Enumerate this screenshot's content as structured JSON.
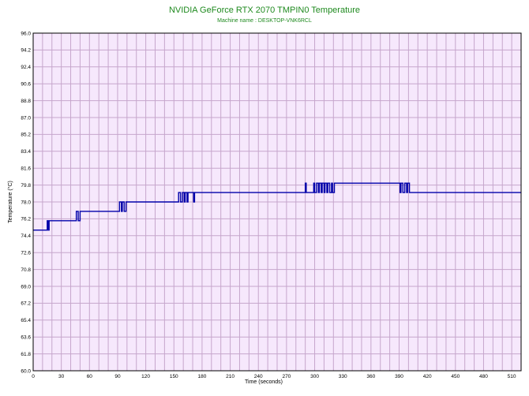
{
  "chart_data": {
    "type": "line",
    "title": "NVIDIA GeForce RTX 2070 TMPIN0 Temperature",
    "subtitle": "Machine name : DESKTOP-VNK6RCL",
    "xlabel": "Time (seconds)",
    "ylabel": "Temperature (°C)",
    "xlim": [
      0,
      520
    ],
    "ylim": [
      60.0,
      96.0
    ],
    "x_ticks": [
      0,
      30,
      60,
      90,
      120,
      150,
      180,
      210,
      240,
      270,
      300,
      330,
      360,
      390,
      420,
      450,
      480,
      510
    ],
    "y_ticks": [
      60.0,
      61.8,
      63.6,
      65.4,
      67.2,
      69.0,
      70.8,
      72.6,
      74.4,
      76.2,
      78.0,
      79.8,
      81.6,
      83.4,
      85.2,
      87.0,
      88.8,
      90.6,
      92.4,
      94.2,
      96.0
    ],
    "grid": true,
    "plot_background": "#f6e8fc",
    "grid_color": "#c6a6cc",
    "line_color": "#0000aa",
    "title_color": "#1f8a1f",
    "series": [
      {
        "values": [
          [
            0,
            75.0
          ],
          [
            15,
            75.0
          ],
          [
            15,
            76.0
          ],
          [
            16,
            76.0
          ],
          [
            16,
            75.0
          ],
          [
            17,
            75.0
          ],
          [
            17,
            76.0
          ],
          [
            46,
            76.0
          ],
          [
            46,
            77.0
          ],
          [
            48,
            77.0
          ],
          [
            48,
            76.0
          ],
          [
            50,
            76.0
          ],
          [
            50,
            77.0
          ],
          [
            92,
            77.0
          ],
          [
            92,
            78.0
          ],
          [
            94,
            78.0
          ],
          [
            94,
            77.0
          ],
          [
            95,
            77.0
          ],
          [
            95,
            78.0
          ],
          [
            97,
            78.0
          ],
          [
            97,
            77.0
          ],
          [
            99,
            77.0
          ],
          [
            99,
            78.0
          ],
          [
            155,
            78.0
          ],
          [
            155,
            79.0
          ],
          [
            157,
            79.0
          ],
          [
            157,
            78.0
          ],
          [
            159,
            78.0
          ],
          [
            159,
            79.0
          ],
          [
            161,
            79.0
          ],
          [
            161,
            78.0
          ],
          [
            162,
            78.0
          ],
          [
            162,
            79.0
          ],
          [
            164,
            79.0
          ],
          [
            164,
            78.0
          ],
          [
            165,
            78.0
          ],
          [
            165,
            79.0
          ],
          [
            171,
            79.0
          ],
          [
            171,
            78.0
          ],
          [
            172,
            78.0
          ],
          [
            172,
            79.0
          ],
          [
            290,
            79.0
          ],
          [
            290,
            80.0
          ],
          [
            291,
            80.0
          ],
          [
            291,
            79.0
          ],
          [
            299,
            79.0
          ],
          [
            299,
            80.0
          ],
          [
            300,
            80.0
          ],
          [
            300,
            79.0
          ],
          [
            302,
            79.0
          ],
          [
            302,
            80.0
          ],
          [
            304,
            80.0
          ],
          [
            304,
            79.0
          ],
          [
            305,
            79.0
          ],
          [
            305,
            80.0
          ],
          [
            307,
            80.0
          ],
          [
            307,
            79.0
          ],
          [
            308,
            79.0
          ],
          [
            308,
            80.0
          ],
          [
            310,
            80.0
          ],
          [
            310,
            79.0
          ],
          [
            311,
            79.0
          ],
          [
            311,
            80.0
          ],
          [
            313,
            80.0
          ],
          [
            313,
            79.0
          ],
          [
            314,
            79.0
          ],
          [
            314,
            80.0
          ],
          [
            316,
            80.0
          ],
          [
            316,
            79.0
          ],
          [
            318,
            79.0
          ],
          [
            318,
            80.0
          ],
          [
            319,
            80.0
          ],
          [
            319,
            79.0
          ],
          [
            321,
            79.0
          ],
          [
            321,
            80.0
          ],
          [
            391,
            80.0
          ],
          [
            391,
            79.0
          ],
          [
            392,
            79.0
          ],
          [
            392,
            80.0
          ],
          [
            394,
            80.0
          ],
          [
            394,
            79.0
          ],
          [
            396,
            79.0
          ],
          [
            396,
            80.0
          ],
          [
            398,
            80.0
          ],
          [
            398,
            79.0
          ],
          [
            399,
            79.0
          ],
          [
            399,
            80.0
          ],
          [
            401,
            80.0
          ],
          [
            401,
            79.0
          ],
          [
            520,
            79.0
          ]
        ]
      }
    ]
  }
}
